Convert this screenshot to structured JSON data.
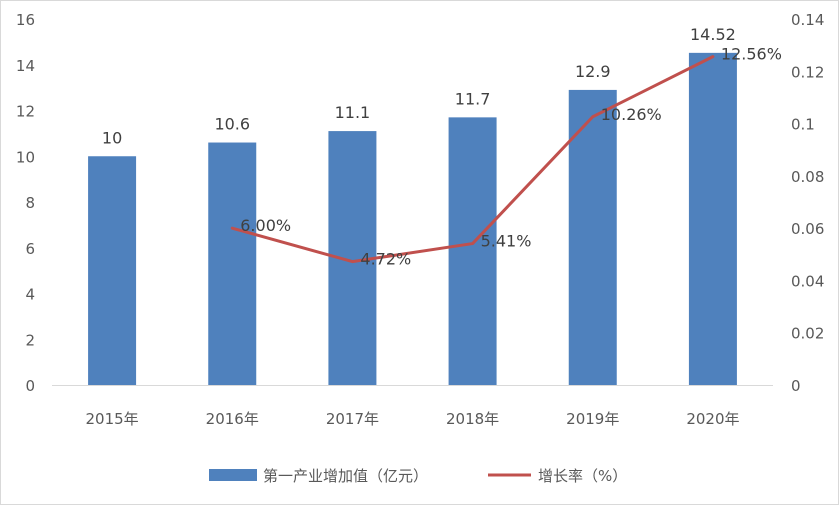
{
  "chart_data": {
    "type": "bar+line",
    "categories": [
      "2015年",
      "2016年",
      "2017年",
      "2018年",
      "2019年",
      "2020年"
    ],
    "series": [
      {
        "name": "第一产业增加值（亿元）",
        "type": "bar",
        "axis": "left",
        "color": "#4F81BD",
        "values": [
          10,
          10.6,
          11.1,
          11.7,
          12.9,
          14.52
        ],
        "labels": [
          "10",
          "10.6",
          "11.1",
          "11.7",
          "12.9",
          "14.52"
        ]
      },
      {
        "name": "增长率（%）",
        "type": "line",
        "axis": "right",
        "color": "#C0504D",
        "values": [
          null,
          0.06,
          0.0472,
          0.0541,
          0.1026,
          0.1256
        ],
        "labels": [
          null,
          "6.00%",
          "4.72%",
          "5.41%",
          "10.26%",
          "12.56%"
        ]
      }
    ],
    "y_left": {
      "range": [
        0,
        16
      ],
      "ticks": [
        "0",
        "2",
        "4",
        "6",
        "8",
        "10",
        "12",
        "14",
        "16"
      ]
    },
    "y_right": {
      "range": [
        0,
        0.14
      ],
      "ticks": [
        "0",
        "0.02",
        "0.04",
        "0.06",
        "0.08",
        "0.1",
        "0.12",
        "0.14"
      ]
    },
    "grid": false,
    "legend_position": "bottom"
  }
}
